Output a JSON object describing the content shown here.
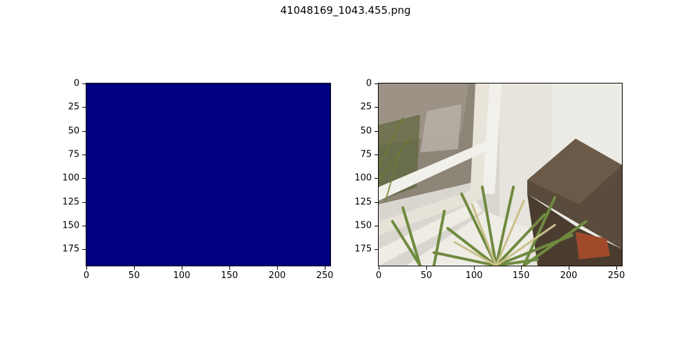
{
  "figure": {
    "title": "41048169_1043.455.png"
  },
  "panels": [
    {
      "name": "mask",
      "fill_color": "#000080",
      "x_ticks": [
        "0",
        "50",
        "100",
        "150",
        "200",
        "250"
      ],
      "y_ticks": [
        "0",
        "25",
        "50",
        "75",
        "100",
        "125",
        "150",
        "175"
      ]
    },
    {
      "name": "photo",
      "description_colors": {
        "wall": "#e6e4dc",
        "wood": "#5a4c3c",
        "frame": "#f2f0ea",
        "foliage": "#6f8a3f"
      },
      "x_ticks": [
        "0",
        "50",
        "100",
        "150",
        "200",
        "250"
      ],
      "y_ticks": [
        "0",
        "25",
        "50",
        "75",
        "100",
        "125",
        "150",
        "175"
      ]
    }
  ]
}
